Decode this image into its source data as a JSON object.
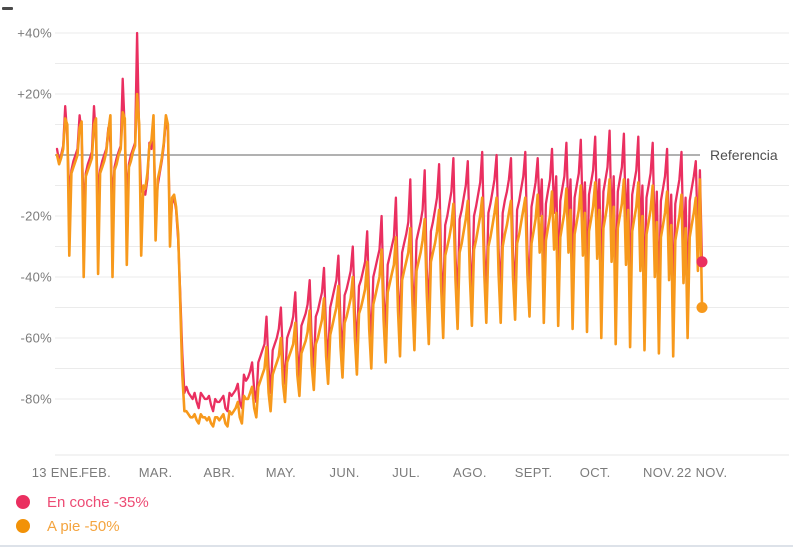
{
  "chart": {
    "reference_label": "Referencia",
    "colors": {
      "grid": "#ebebeb",
      "reference_line": "#828282",
      "axis_line": "#e7e7e7",
      "tick_text": "#7b7b7b",
      "reference_text": "#4f4f4f"
    },
    "y_ticks": [
      {
        "label": "+40%",
        "value": 40
      },
      {
        "label": "+20%",
        "value": 20
      },
      {
        "label": "-20%",
        "value": -20
      },
      {
        "label": "-40%",
        "value": -40
      },
      {
        "label": "-60%",
        "value": -60
      },
      {
        "label": "-80%",
        "value": -80
      }
    ],
    "y_gridlines": [
      40,
      30,
      20,
      10,
      -10,
      -20,
      -30,
      -40,
      -50,
      -60,
      -70,
      -80
    ],
    "x_ticks": [
      {
        "label": "13 ENE.",
        "day": 0
      },
      {
        "label": "FEB.",
        "day": 19
      },
      {
        "label": "MAR.",
        "day": 48
      },
      {
        "label": "ABR.",
        "day": 79
      },
      {
        "label": "MAY.",
        "day": 109
      },
      {
        "label": "JUN.",
        "day": 140
      },
      {
        "label": "JUL.",
        "day": 170
      },
      {
        "label": "AGO.",
        "day": 201
      },
      {
        "label": "SEPT.",
        "day": 232
      },
      {
        "label": "OCT.",
        "day": 262
      },
      {
        "label": "NOV.",
        "day": 293
      },
      {
        "label": "22 NOV.",
        "day": 314
      }
    ]
  },
  "legend": {
    "items": [
      {
        "label": "En coche -35%",
        "dot_color": "#ea2f60",
        "text_color": "#ed4b74"
      },
      {
        "label": "A pie -50%",
        "dot_color": "#f29208",
        "text_color": "#f4a43f"
      }
    ]
  },
  "chart_data": {
    "type": "line",
    "title": "",
    "x_start_label": "13 ENE.",
    "x_end_label": "22 NOV.",
    "x_unit": "day",
    "n_points": 315,
    "ylim": [
      -90,
      45
    ],
    "y_unit": "percent vs reference (0 = Referencia)",
    "reference_value": 0,
    "legend_position": "bottom-left",
    "grid": true,
    "series": [
      {
        "name": "En coche",
        "current_change": "-35%",
        "color": "#ea2f60",
        "values": [
          2,
          -2,
          0,
          3,
          16,
          6,
          -14,
          -5,
          -2,
          0,
          2,
          13,
          7,
          -19,
          -6,
          -3,
          -1,
          1,
          16,
          5,
          -13,
          -5,
          -2,
          0,
          2,
          9,
          4,
          -16,
          -4,
          -1,
          1,
          3,
          25,
          8,
          -15,
          -3,
          0,
          2,
          4,
          40,
          6,
          -12,
          -12,
          -13,
          -8,
          4,
          2,
          10,
          -20,
          -10,
          -6,
          -2,
          3,
          12,
          8,
          -25,
          -16,
          -14,
          -18,
          -28,
          -45,
          -65,
          -78,
          -76,
          -78,
          -79,
          -80,
          -78,
          -81,
          -83,
          -78,
          -79,
          -80,
          -80,
          -79,
          -82,
          -84,
          -80,
          -81,
          -81,
          -80,
          -79,
          -83,
          -84,
          -78,
          -79,
          -78,
          -77,
          -75,
          -81,
          -83,
          -72,
          -74,
          -73,
          -71,
          -68,
          -77,
          -81,
          -68,
          -66,
          -64,
          -62,
          -53,
          -70,
          -78,
          -64,
          -62,
          -60,
          -57,
          -50,
          -67,
          -75,
          -60,
          -58,
          -56,
          -53,
          -45,
          -64,
          -73,
          -56,
          -54,
          -52,
          -49,
          -41,
          -61,
          -70,
          -53,
          -51,
          -48,
          -45,
          -37,
          -58,
          -68,
          -50,
          -47,
          -44,
          -41,
          -33,
          -55,
          -66,
          -46,
          -44,
          -41,
          -38,
          -30,
          -52,
          -63,
          -43,
          -41,
          -38,
          -35,
          -25,
          -49,
          -61,
          -40,
          -37,
          -34,
          -31,
          -20,
          -46,
          -58,
          -36,
          -33,
          -30,
          -27,
          -14,
          -43,
          -56,
          -32,
          -29,
          -26,
          -22,
          -8,
          -40,
          -53,
          -28,
          -25,
          -22,
          -18,
          -5,
          -37,
          -51,
          -25,
          -22,
          -18,
          -14,
          -3,
          -35,
          -49,
          -23,
          -20,
          -16,
          -12,
          -1,
          -33,
          -48,
          -21,
          -18,
          -14,
          -10,
          -2,
          -32,
          -47,
          -20,
          -17,
          -13,
          -9,
          1,
          -31,
          -46,
          -19,
          -16,
          -12,
          -8,
          0,
          -31,
          -46,
          -19,
          -15,
          -12,
          -8,
          -1,
          -32,
          -45,
          -18,
          -15,
          -11,
          -7,
          1,
          -31,
          -44,
          -17,
          -13,
          -9,
          -1,
          -20,
          -8,
          -43,
          -16,
          -12,
          -8,
          2,
          -19,
          -7,
          -42,
          -15,
          -11,
          -7,
          4,
          -21,
          -8,
          -41,
          -14,
          -10,
          -6,
          5,
          -22,
          -9,
          -42,
          -13,
          -9,
          -5,
          6,
          -23,
          -8,
          -43,
          -12,
          -8,
          -4,
          8,
          -24,
          -7,
          -44,
          -12,
          -8,
          -4,
          7,
          -25,
          -8,
          -45,
          -13,
          -9,
          -5,
          6,
          -27,
          -10,
          -46,
          -14,
          -10,
          -6,
          4,
          -29,
          -12,
          -48,
          -15,
          -11,
          -7,
          2,
          -30,
          -13,
          -49,
          -16,
          -12,
          -8,
          1,
          -31,
          -14,
          -47,
          -15,
          -11,
          -7,
          -2,
          -28,
          -5,
          -35
        ]
      },
      {
        "name": "A pie",
        "current_change": "-50%",
        "color": "#f7991c",
        "values": [
          0,
          -3,
          -1,
          2,
          12,
          10,
          -33,
          -6,
          -4,
          -2,
          0,
          9,
          11,
          -40,
          -7,
          -5,
          -3,
          -1,
          10,
          12,
          -39,
          -6,
          -4,
          -2,
          1,
          8,
          13,
          -40,
          -5,
          -3,
          0,
          2,
          14,
          12,
          -36,
          -4,
          -2,
          1,
          3,
          20,
          10,
          -33,
          -10,
          -11,
          -6,
          3,
          5,
          13,
          -28,
          -8,
          -5,
          -1,
          4,
          13,
          10,
          -30,
          -14,
          -13,
          -17,
          -26,
          -48,
          -72,
          -84,
          -84,
          -85,
          -86,
          -86,
          -85,
          -87,
          -88,
          -85,
          -86,
          -86,
          -87,
          -86,
          -88,
          -89,
          -86,
          -86,
          -87,
          -86,
          -85,
          -88,
          -89,
          -84,
          -85,
          -84,
          -83,
          -81,
          -86,
          -88,
          -79,
          -80,
          -80,
          -78,
          -76,
          -83,
          -86,
          -76,
          -74,
          -72,
          -70,
          -63,
          -78,
          -84,
          -72,
          -70,
          -68,
          -66,
          -60,
          -75,
          -81,
          -68,
          -66,
          -64,
          -62,
          -55,
          -72,
          -79,
          -65,
          -63,
          -61,
          -58,
          -51,
          -69,
          -77,
          -62,
          -60,
          -57,
          -54,
          -47,
          -66,
          -75,
          -59,
          -56,
          -53,
          -50,
          -43,
          -63,
          -73,
          -55,
          -53,
          -50,
          -47,
          -40,
          -60,
          -72,
          -52,
          -50,
          -47,
          -44,
          -35,
          -57,
          -70,
          -49,
          -46,
          -43,
          -40,
          -31,
          -54,
          -68,
          -45,
          -42,
          -39,
          -36,
          -27,
          -51,
          -66,
          -41,
          -38,
          -35,
          -32,
          -24,
          -48,
          -64,
          -38,
          -35,
          -32,
          -28,
          -21,
          -45,
          -62,
          -35,
          -32,
          -29,
          -25,
          -18,
          -43,
          -60,
          -33,
          -30,
          -27,
          -23,
          -16,
          -41,
          -57,
          -32,
          -29,
          -25,
          -21,
          -15,
          -40,
          -56,
          -31,
          -28,
          -24,
          -20,
          -14,
          -39,
          -55,
          -30,
          -27,
          -23,
          -19,
          -14,
          -39,
          -55,
          -30,
          -26,
          -23,
          -19,
          -15,
          -40,
          -54,
          -29,
          -26,
          -22,
          -18,
          -14,
          -39,
          -53,
          -29,
          -25,
          -21,
          -13,
          -32,
          -20,
          -55,
          -28,
          -24,
          -20,
          -12,
          -31,
          -19,
          -56,
          -27,
          -23,
          -19,
          -11,
          -32,
          -18,
          -57,
          -26,
          -22,
          -18,
          -10,
          -33,
          -19,
          -58,
          -25,
          -21,
          -17,
          -9,
          -34,
          -18,
          -60,
          -24,
          -20,
          -16,
          -8,
          -35,
          -17,
          -62,
          -24,
          -20,
          -16,
          -8,
          -36,
          -18,
          -63,
          -25,
          -21,
          -17,
          -9,
          -38,
          -20,
          -64,
          -26,
          -22,
          -18,
          -10,
          -40,
          -22,
          -65,
          -27,
          -23,
          -19,
          -12,
          -41,
          -23,
          -66,
          -28,
          -24,
          -20,
          -13,
          -42,
          -24,
          -60,
          -27,
          -23,
          -19,
          -14,
          -38,
          -8,
          -50
        ]
      }
    ]
  }
}
